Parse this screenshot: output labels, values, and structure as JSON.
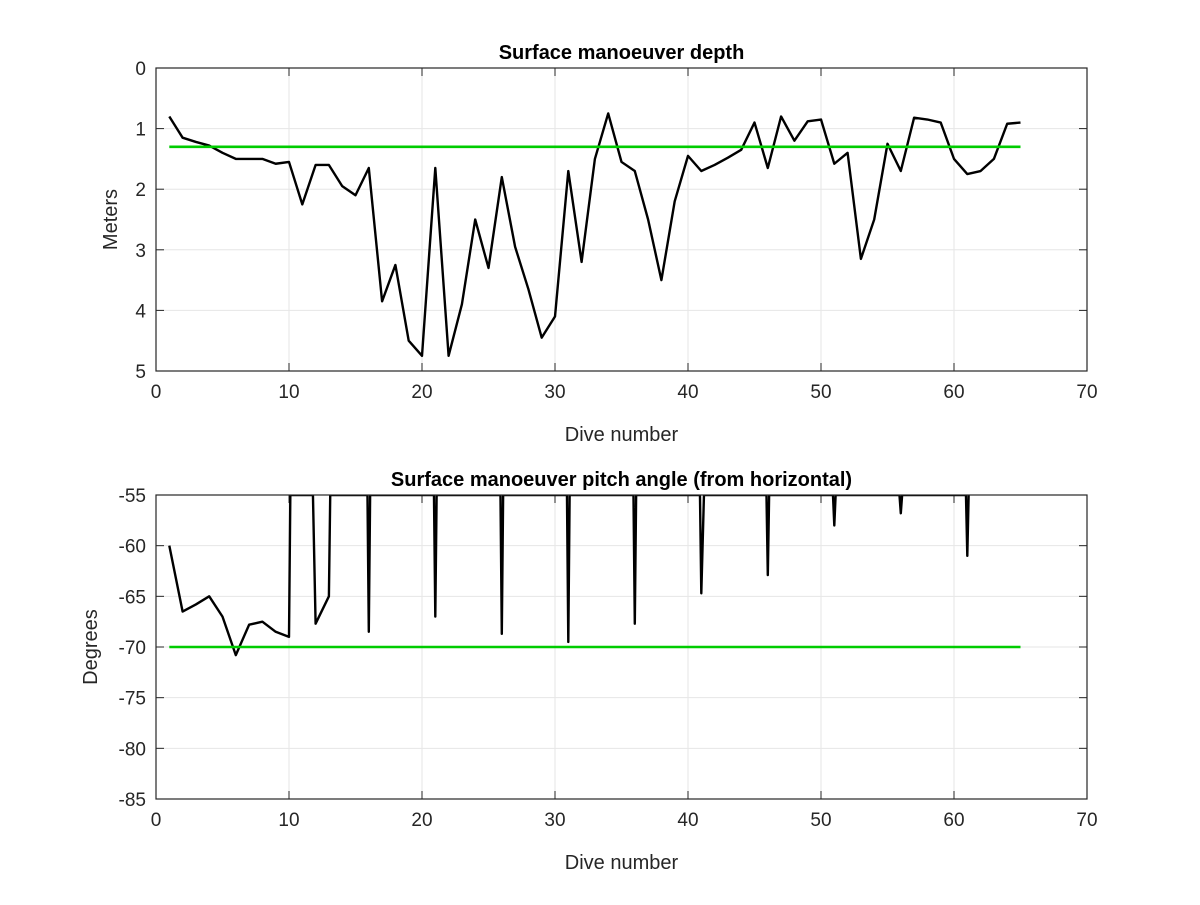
{
  "chart_data": [
    {
      "type": "line",
      "title": "Surface manoeuver depth",
      "xlabel": "Dive number",
      "ylabel": "Meters",
      "xlim": [
        0,
        70
      ],
      "ylim": [
        0,
        5
      ],
      "y_reversed": true,
      "grid": true,
      "xticks": [
        "0",
        "10",
        "20",
        "30",
        "40",
        "50",
        "60",
        "70"
      ],
      "yticks": [
        "0",
        "1",
        "2",
        "3",
        "4",
        "5"
      ],
      "series": [
        {
          "color": "#000000",
          "x": [
            1,
            2,
            3,
            4,
            5,
            6,
            7,
            8,
            9,
            10,
            11,
            12,
            13,
            14,
            15,
            16,
            17,
            18,
            19,
            20,
            21,
            22,
            23,
            24,
            25,
            26,
            27,
            28,
            29,
            30,
            31,
            32,
            33,
            34,
            35,
            36,
            37,
            38,
            39,
            40,
            41,
            42,
            43,
            44,
            45,
            46,
            47,
            48,
            49,
            50,
            51,
            52,
            53,
            54,
            55,
            56,
            57,
            58,
            59,
            60,
            61,
            62,
            63,
            64,
            65
          ],
          "y": [
            0.8,
            1.15,
            1.22,
            1.28,
            1.4,
            1.5,
            1.5,
            1.5,
            1.58,
            1.55,
            2.25,
            1.6,
            1.6,
            1.95,
            2.1,
            1.65,
            3.85,
            3.25,
            4.5,
            4.75,
            1.65,
            4.75,
            3.9,
            2.5,
            3.3,
            1.8,
            2.95,
            3.65,
            4.45,
            4.1,
            1.7,
            3.2,
            1.5,
            0.75,
            1.55,
            1.7,
            2.5,
            3.5,
            2.2,
            1.45,
            1.7,
            1.6,
            1.48,
            1.35,
            0.9,
            1.65,
            0.8,
            1.2,
            0.88,
            0.85,
            1.58,
            1.4,
            3.15,
            2.5,
            1.25,
            1.7,
            0.82,
            0.85,
            0.9,
            1.5,
            1.75,
            1.7,
            1.5,
            0.92,
            0.9
          ]
        },
        {
          "color": "#00cc00",
          "x": [
            1,
            65
          ],
          "y": [
            1.3,
            1.3
          ]
        }
      ]
    },
    {
      "type": "line",
      "title": "Surface manoeuver pitch angle (from horizontal)",
      "xlabel": "Dive number",
      "ylabel": "Degrees",
      "xlim": [
        0,
        70
      ],
      "ylim": [
        -85,
        -55
      ],
      "grid": true,
      "xticks": [
        "0",
        "10",
        "20",
        "30",
        "40",
        "50",
        "60",
        "70"
      ],
      "yticks": [
        "-55",
        "-60",
        "-65",
        "-70",
        "-75",
        "-80",
        "-85"
      ],
      "series": [
        {
          "color": "#000000",
          "x": [
            1,
            2,
            3,
            4,
            5,
            6,
            7,
            8,
            9,
            10,
            10.1,
            10.2,
            11.8,
            12,
            13,
            13.1,
            15.9,
            16,
            16.1,
            20.9,
            21,
            21.1,
            25.9,
            26,
            26.1,
            30.9,
            31,
            31.1,
            35.9,
            36,
            36.1,
            40.9,
            41,
            41.2,
            45.9,
            46,
            46.1,
            50.9,
            51,
            51.1,
            55.9,
            56,
            56.1,
            60.9,
            61,
            61.1
          ],
          "y": [
            -60,
            -66.5,
            -65.8,
            -65,
            -67,
            -70.8,
            -67.8,
            -67.5,
            -68.5,
            -69,
            -55,
            -55,
            -55,
            -67.7,
            -65,
            -55,
            -55,
            -68.5,
            -55,
            -55,
            -67,
            -55,
            -55,
            -68.7,
            -55,
            -55,
            -69.5,
            -55,
            -55,
            -67.7,
            -55,
            -55,
            -64.7,
            -55,
            -55,
            -62.9,
            -55,
            -55,
            -58,
            -55,
            -55,
            -56.8,
            -55,
            -55,
            -61,
            -55
          ]
        },
        {
          "color": "#00cc00",
          "x": [
            1,
            65
          ],
          "y": [
            -70,
            -70
          ]
        }
      ]
    }
  ]
}
